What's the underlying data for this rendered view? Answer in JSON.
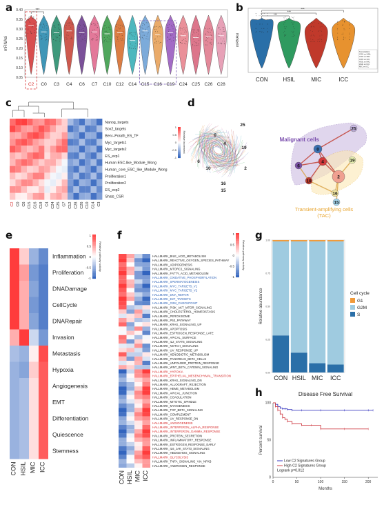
{
  "panels": [
    "a",
    "b",
    "c",
    "d",
    "e",
    "f",
    "g",
    "h"
  ],
  "colors": {
    "red": "#d62728",
    "blue": "#3a6fb0",
    "green": "#3aa76d",
    "orange": "#f0a040",
    "purple": "#8e59a8",
    "teal": "#2aa6b0",
    "pink": "#e58aa3"
  },
  "chart_data": [
    {
      "type": "violin",
      "panel": "a",
      "ylabel": "mRNAsi",
      "categories": [
        "C2",
        "C0",
        "C3",
        "C4",
        "C6",
        "C7",
        "C10",
        "C12",
        "C14",
        "C15",
        "C16",
        "C19",
        "C24",
        "C25",
        "C26",
        "C28"
      ],
      "medians": [
        0.32,
        0.285,
        0.28,
        0.29,
        0.28,
        0.285,
        0.275,
        0.28,
        0.24,
        0.29,
        0.27,
        0.28,
        0.265,
        0.255,
        0.26,
        0.265
      ],
      "colors": [
        "#d43d3d",
        "#2b8bb0",
        "#2a8f6e",
        "#c9483b",
        "#6d3e8e",
        "#e06a8f",
        "#3e9e4c",
        "#d86f2f",
        "#3ab0b8",
        "#6ea3d6",
        "#e8a35a",
        "#9a5cc0",
        "#e8848e",
        "#d9687f",
        "#e07c8e",
        "#e597b0"
      ],
      "ylim": [
        0.05,
        0.4
      ],
      "yticks": [
        "0.40",
        "0.35",
        "0.30",
        "0.25",
        "0.20",
        "0.15",
        "0.10",
        "0.05"
      ],
      "annotation": "***",
      "highlight": [
        "C2"
      ],
      "highlight_group": [
        "C15",
        "C16",
        "C19"
      ]
    },
    {
      "type": "violin",
      "panel": "b",
      "ylabel": "mRNAsi",
      "categories": [
        "CON",
        "HSIL",
        "MIC",
        "ICC"
      ],
      "colors": [
        "#2a6fa8",
        "#2f9a5f",
        "#c0392b",
        "#e7922f"
      ],
      "medians": [
        0.32,
        0.3,
        0.27,
        0.28
      ],
      "ylim": [
        0.05,
        0.4
      ],
      "annotations": [
        "***",
        "***",
        "***"
      ],
      "legend_lines": [
        "Test statistic",
        "CON vs HSIL",
        "CON vs MIC",
        "CON vs ICC",
        "HSIL vs MIC",
        "HSIL vs ICC",
        "MIC vs ICC"
      ]
    },
    {
      "type": "heatmap",
      "panel": "c",
      "rows": [
        "Nanog_targets",
        "Sox2_targets",
        "Benr–Porath_ES_TF",
        "Myc_targets1",
        "Myc_targets2",
        "ES_exp1",
        "Human ESC-like_Module_Wong",
        "Human_core_ESC_like_Module_Wong",
        "Proliferation1",
        "Proliferation2",
        "ES_exp2",
        "Shats_CSR"
      ],
      "columns": [
        "C2",
        "C0",
        "C6",
        "C15",
        "C16",
        "C19",
        "C4",
        "C24",
        "C25",
        "C7",
        "C12",
        "C28",
        "C26",
        "C10",
        "C14",
        "C3"
      ],
      "legend_title": "Relative increment",
      "legend_ticks": [
        "1",
        "0.5",
        "0",
        "-0.5",
        "-1"
      ]
    },
    {
      "type": "network",
      "panel": "d",
      "clusters": [
        "0",
        "2",
        "4",
        "6",
        "10",
        "15",
        "16",
        "19",
        "25"
      ],
      "labels": {
        "malignant": "Malignant cells",
        "tac": "Transient-amplifying cells",
        "tac_abbr": "(TAC)"
      }
    },
    {
      "type": "heatmap",
      "panel": "e",
      "rows": [
        "Inflammation",
        "Proliferation",
        "DNADamage",
        "CellCycle",
        "DNARepair",
        "Invasion",
        "Metastasis",
        "Hypoxia",
        "Angiogenesis",
        "EMT",
        "Differentiation",
        "Quiescence",
        "Stemness"
      ],
      "columns": [
        "CON",
        "HSIL",
        "MIC",
        "ICC"
      ],
      "values": [
        [
          1.2,
          0.3,
          -0.6,
          -0.9
        ],
        [
          1.2,
          0.6,
          -0.8,
          -1.0
        ],
        [
          1.2,
          0.5,
          -0.7,
          -1.0
        ],
        [
          1.2,
          0.5,
          -0.8,
          -1.0
        ],
        [
          1.2,
          0.5,
          -0.7,
          -1.0
        ],
        [
          0.5,
          1.2,
          -0.3,
          -0.8
        ],
        [
          -0.5,
          -0.6,
          0.1,
          1.1
        ],
        [
          -0.6,
          -0.7,
          0.3,
          1.0
        ],
        [
          -0.6,
          -0.5,
          0.2,
          1.0
        ],
        [
          -0.6,
          -0.5,
          0.2,
          1.0
        ],
        [
          -0.6,
          -0.5,
          0.2,
          1.0
        ],
        [
          -0.6,
          -0.5,
          0.2,
          1.0
        ],
        [
          -0.6,
          -0.5,
          0.2,
          1.0
        ]
      ],
      "legend_title": "Relative pathway activity",
      "legend_ticks": [
        "1",
        "0.5",
        "0",
        "-0.5",
        "-1"
      ]
    },
    {
      "type": "heatmap",
      "panel": "f",
      "columns": [
        "CON",
        "HSIL",
        "MIC",
        "ICC"
      ],
      "rows": [
        "HALLMARK_BILE_ACID_METABOLISM",
        "HALLMARK_REACTIVE_OXYGEN_SPECIES_PATHWAY",
        "HALLMARK_ADIPOGENESIS",
        "HALLMARK_MTORC1_SIGNALING",
        "HALLMARK_FATTY_ACID_METABOLISM",
        "HALLMARK_OXIDATIVE_PHOSPHORYLATION",
        "HALLMARK_SPERMATOGENESIS",
        "HALLMARK_MYC_TARGETS_V1",
        "HALLMARK_MYC_TARGETS_V2",
        "HALLMARK_DNA_REPAIR",
        "HALLMARK_E2F_TARGETS",
        "HALLMARK_G2M_CHECKPOINT",
        "HALLMARK_PI3K_AKT_MTOR_SIGNALING",
        "HALLMARK_CHOLESTEROL_HOMEOSTASIS",
        "HALLMARK_PEROXISOME",
        "HALLMARK_P53_PATHWAY",
        "HALLMARK_KRAS_SIGNALING_UP",
        "HALLMARK_APOPTOSIS",
        "HALLMARK_ESTROGEN_RESPONSE_LATE",
        "HALLMARK_APICAL_SURFACE",
        "HALLMARK_IL2_STAT5_SIGNALING",
        "HALLMARK_NOTCH_SIGNALING",
        "HALLMARK_UV_RESPONSE_UP",
        "HALLMARK_XENOBIOTIC_METABOLISM",
        "HALLMARK_PANCREAS_BETA_CELLS",
        "HALLMARK_UNFOLDED_PROTEIN_RESPONSE",
        "HALLMARK_WNT_BETA_CATENIN_SIGNALING",
        "HALLMARK_HYPOXIA",
        "HALLMARK_EPITHELIAL_MESENCHYMAL_TRANSITION",
        "HALLMARK_KRAS_SIGNALING_DN",
        "HALLMARK_ALLOGRAFT_REJECTION",
        "HALLMARK_HEME_METABOLISM",
        "HALLMARK_APICAL_JUNCTION",
        "HALLMARK_COAGULATION",
        "HALLMARK_MITOTIC_SPINDLE",
        "HALLMARK_MYOGENESIS",
        "HALLMARK_TGF_BETA_SIGNALING",
        "HALLMARK_COMPLEMENT",
        "HALLMARK_UV_RESPONSE_DN",
        "HALLMARK_ANGIOGENESIS",
        "HALLMARK_INTERFERON_ALPHA_RESPONSE",
        "HALLMARK_INTERFERON_GAMMA_RESPONSE",
        "HALLMARK_PROTEIN_SECRETION",
        "HALLMARK_INFLAMMATORY_RESPONSE",
        "HALLMARK_ESTROGEN_RESPONSE_EARLY",
        "HALLMARK_IL6_JAK_STAT3_SIGNALING",
        "HALLMARK_HEDGEHOG_SIGNALING",
        "HALLMARK_GLYCOLYSIS",
        "HALLMARK_TNFA_SIGNALING_VIA_NFKB",
        "HALLMARK_ANDROGEN_RESPONSE"
      ],
      "row_colors": {
        "blue": [
          5,
          6,
          7,
          8,
          9,
          10,
          11
        ],
        "red": [
          27,
          28,
          39,
          40,
          41,
          47
        ]
      },
      "legend_title": "Relative pathway activity",
      "legend_ticks": [
        "1",
        "0.5",
        "0",
        "-0.5",
        "-1"
      ]
    },
    {
      "type": "bar",
      "panel": "g",
      "stacked": true,
      "categories": [
        "CON",
        "HSIL",
        "MIC",
        "ICC"
      ],
      "ylabel": "Relative abundance",
      "series": [
        {
          "name": "S",
          "values": [
            0.28,
            0.15,
            0.07,
            0.06
          ],
          "color": "#2a6fa8"
        },
        {
          "name": "G2M",
          "values": [
            0.71,
            0.84,
            0.92,
            0.93
          ],
          "color": "#9fcbe0"
        },
        {
          "name": "G1",
          "values": [
            0.01,
            0.01,
            0.01,
            0.01
          ],
          "color": "#f09a3a"
        }
      ],
      "yticks": [
        "1.00",
        "0.75",
        "0.50",
        "0.25",
        "0.00"
      ],
      "legend_title": "Cell cycle"
    },
    {
      "type": "line",
      "panel": "h",
      "title": "Disease Free Survival",
      "xlabel": "Months",
      "ylabel": "Percent survival",
      "xticks": [
        "0",
        "50",
        "100",
        "150",
        "200"
      ],
      "yticks": [
        "100",
        "50",
        "0"
      ],
      "series": [
        {
          "name": "Low C2 Signatures Group",
          "color": "#3a3ac0",
          "x": [
            0,
            5,
            10,
            15,
            20,
            25,
            30,
            40,
            60,
            100,
            150,
            200,
            210
          ],
          "y": [
            100,
            98,
            95,
            93,
            92,
            92,
            91,
            90,
            90,
            90,
            90,
            90,
            90
          ]
        },
        {
          "name": "High C2 Signatures Group",
          "color": "#d0434b",
          "x": [
            0,
            5,
            10,
            15,
            20,
            25,
            30,
            40,
            60,
            80,
            100,
            150,
            200
          ],
          "y": [
            100,
            95,
            90,
            85,
            80,
            78,
            75,
            72,
            70,
            70,
            65,
            65,
            65
          ]
        }
      ],
      "annotation": "Logrank p=0.012"
    }
  ]
}
